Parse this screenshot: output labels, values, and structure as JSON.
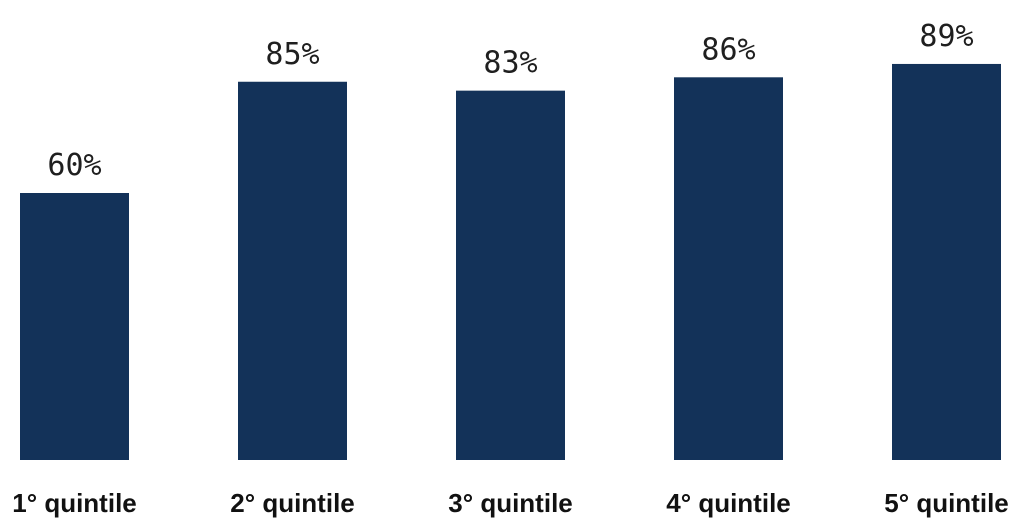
{
  "chart_data": {
    "type": "bar",
    "categories": [
      "1° quintile",
      "2° quintile",
      "3° quintile",
      "4° quintile",
      "5° quintile"
    ],
    "values": [
      60,
      85,
      83,
      86,
      89
    ],
    "value_labels": [
      "60%",
      "85%",
      "83%",
      "86%",
      "89%"
    ],
    "title": "",
    "xlabel": "",
    "ylabel": "",
    "ylim": [
      0,
      100
    ],
    "grid": false,
    "legend": "none",
    "bar_color": "#133259"
  }
}
